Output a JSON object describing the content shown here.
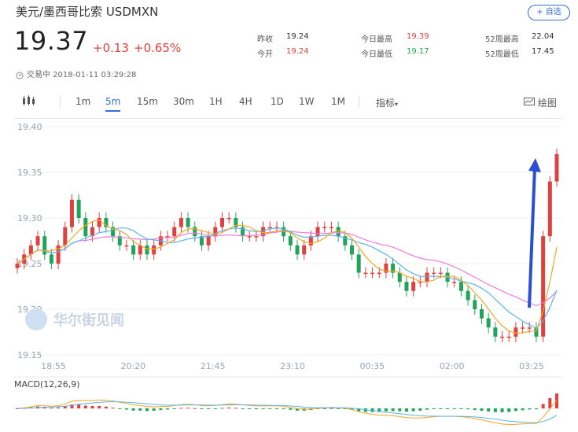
{
  "header": {
    "title": "美元/墨西哥比索 USDMXN",
    "add_button": "+ 自选",
    "price": "19.37",
    "change": "+0.13",
    "change_pct": "+0.65%",
    "status": "交易中 2018-01-11 03:29:28"
  },
  "stats": [
    {
      "label": "昨收",
      "value": "19.24",
      "color": "dark"
    },
    {
      "label": "今开",
      "value": "19.24",
      "color": "red"
    },
    {
      "label": "今日最高",
      "value": "19.39",
      "color": "red"
    },
    {
      "label": "今日最低",
      "value": "19.17",
      "color": "green"
    },
    {
      "label": "52周最高",
      "value": "22.04",
      "color": "dark"
    },
    {
      "label": "52周最低",
      "value": "17.45",
      "color": "dark"
    }
  ],
  "toolbar": {
    "timeframes": [
      "1m",
      "5m",
      "15m",
      "30m",
      "1H",
      "4H",
      "1D",
      "1W",
      "1M"
    ],
    "active": "5m",
    "indicators": "指标",
    "draw": "绘图"
  },
  "watermark": "华尔街见闻",
  "colors": {
    "up": "#e0413f",
    "down": "#21a45a",
    "accent": "#2f6fd6",
    "ma5": "#f5a623",
    "ma10": "#5ab4e8",
    "ma20": "#f07be0"
  },
  "chart_data": [
    {
      "type": "candlestick",
      "title": "",
      "yticks": [
        "19.40",
        "19.35",
        "19.30",
        "19.25",
        "19.20",
        "19.15"
      ],
      "ylim": [
        19.15,
        19.4
      ],
      "xticks": [
        "18:55",
        "20:20",
        "21:45",
        "23:10",
        "00:35",
        "02:00",
        "03:25"
      ],
      "closes": [
        19.25,
        19.26,
        19.27,
        19.28,
        19.26,
        19.25,
        19.27,
        19.29,
        19.32,
        19.3,
        19.28,
        19.29,
        19.3,
        19.29,
        19.28,
        19.27,
        19.27,
        19.26,
        19.27,
        19.26,
        19.27,
        19.28,
        19.28,
        19.29,
        19.3,
        19.29,
        19.28,
        19.27,
        19.28,
        19.29,
        19.3,
        19.3,
        19.29,
        19.28,
        19.28,
        19.28,
        19.29,
        19.29,
        19.29,
        19.28,
        19.27,
        19.26,
        19.27,
        19.28,
        19.29,
        19.29,
        19.29,
        19.28,
        19.27,
        19.26,
        19.24,
        19.24,
        19.24,
        19.24,
        19.25,
        19.24,
        19.23,
        19.22,
        19.23,
        19.23,
        19.24,
        19.24,
        19.24,
        19.23,
        19.23,
        19.22,
        19.21,
        19.2,
        19.19,
        19.18,
        19.17,
        19.17,
        19.17,
        19.18,
        19.18,
        19.18,
        19.17,
        19.28,
        19.34,
        19.37
      ],
      "indicator": {
        "name": "MACD(12,26,9)"
      },
      "legend": []
    }
  ]
}
